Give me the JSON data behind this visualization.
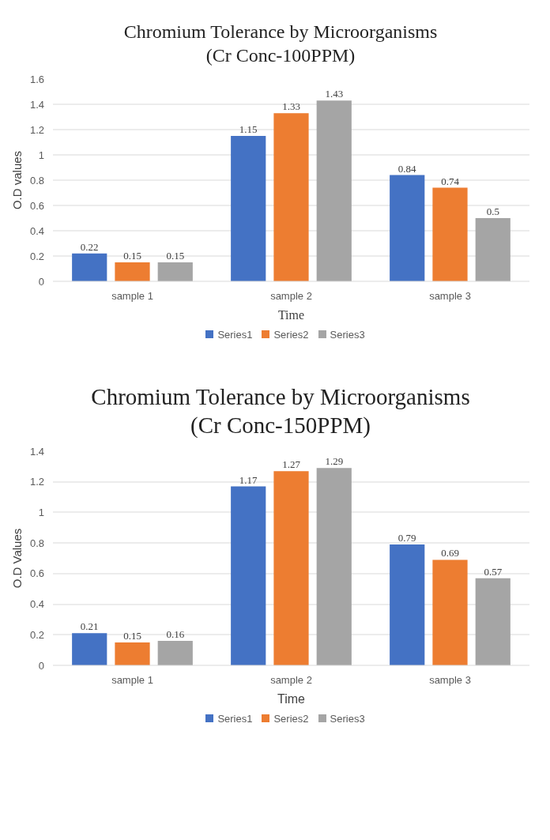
{
  "chart_data": [
    {
      "type": "bar",
      "title": "Chromium Tolerance by Microorganisms",
      "subtitle": "(Cr Conc-100PPM)",
      "xlabel": "Time",
      "ylabel": "O.D values",
      "categories": [
        "sample 1",
        "sample 2",
        "sample 3"
      ],
      "series": [
        {
          "name": "Series1",
          "color": "#4472c4",
          "values": [
            0.22,
            1.15,
            0.84
          ]
        },
        {
          "name": "Series2",
          "color": "#ed7d31",
          "values": [
            0.15,
            1.33,
            0.74
          ]
        },
        {
          "name": "Series3",
          "color": "#a5a5a5",
          "values": [
            0.15,
            1.43,
            0.5
          ]
        }
      ],
      "ylim": [
        0,
        1.6
      ],
      "yticks": [
        0,
        0.2,
        0.4,
        0.6,
        0.8,
        1,
        1.2,
        1.4,
        1.6
      ],
      "grid": "y",
      "legend": "bottom",
      "data_labels": true
    },
    {
      "type": "bar",
      "title": "Chromium Tolerance by Microorganisms",
      "subtitle": "(Cr Conc-150PPM)",
      "xlabel": "Time",
      "ylabel": "O.D Values",
      "categories": [
        "sample 1",
        "sample 2",
        "sample 3"
      ],
      "series": [
        {
          "name": "Series1",
          "color": "#4472c4",
          "values": [
            0.21,
            1.17,
            0.79
          ]
        },
        {
          "name": "Series2",
          "color": "#ed7d31",
          "values": [
            0.15,
            1.27,
            0.69
          ]
        },
        {
          "name": "Series3",
          "color": "#a5a5a5",
          "values": [
            0.16,
            1.29,
            0.57
          ]
        }
      ],
      "ylim": [
        0,
        1.4
      ],
      "yticks": [
        0,
        0.2,
        0.4,
        0.6,
        0.8,
        1,
        1.2,
        1.4
      ],
      "grid": "y",
      "legend": "bottom",
      "data_labels": true
    }
  ]
}
